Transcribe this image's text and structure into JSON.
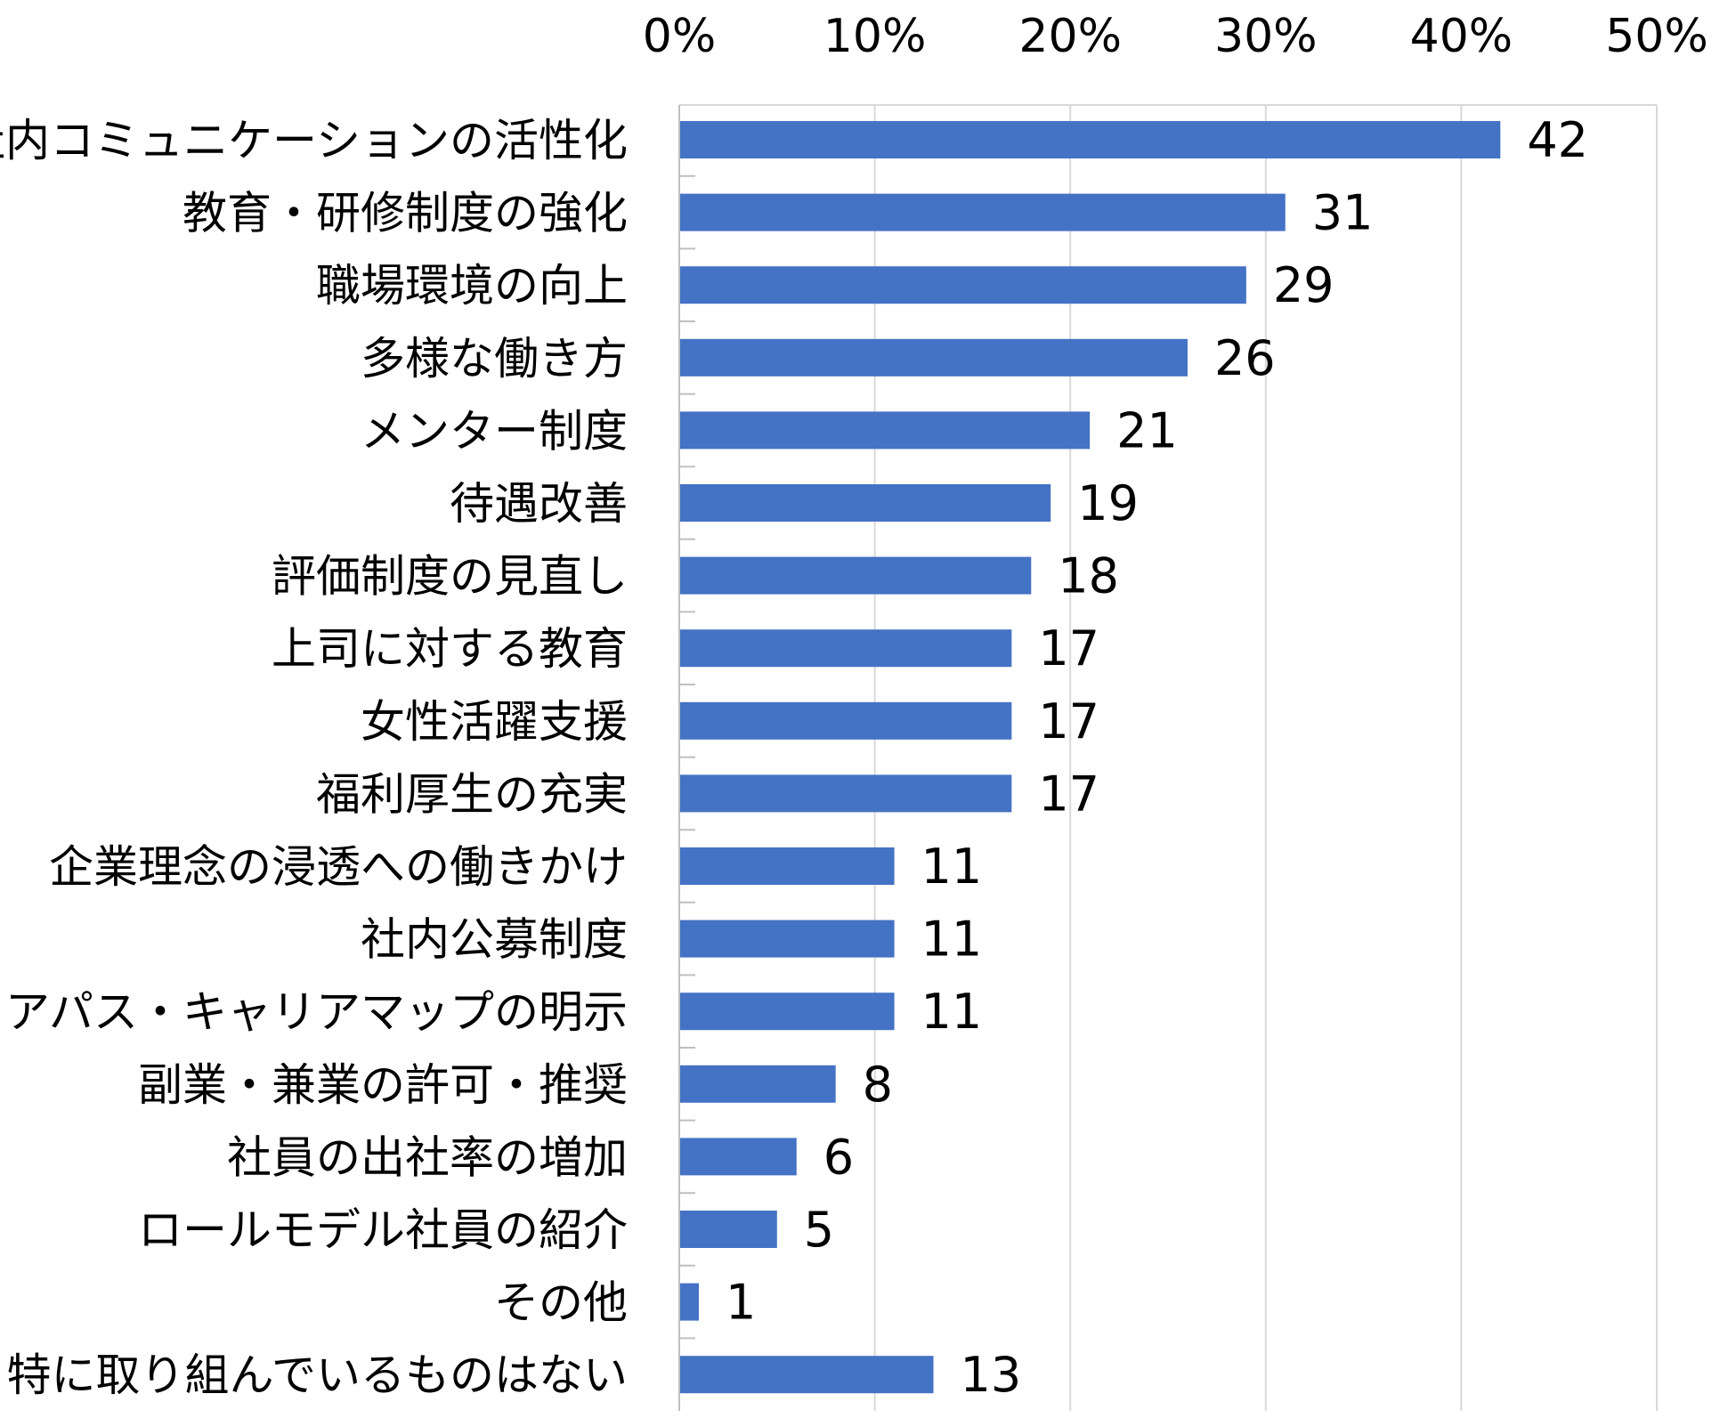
{
  "chart_data": {
    "type": "bar",
    "orientation": "horizontal",
    "title": "",
    "xlabel": "",
    "ylabel": "",
    "xlim": [
      0,
      50
    ],
    "x_ticks": [
      "0%",
      "10%",
      "20%",
      "30%",
      "40%",
      "50%"
    ],
    "x_axis_position": "top",
    "grid": true,
    "legend": "none",
    "bar_color": "#4472C4",
    "categories": [
      "社内コミュニケーションの活性化",
      "教育・研修制度の強化",
      "職場環境の向上",
      "多様な働き方",
      "メンター制度",
      "待遇改善",
      "評価制度の見直し",
      "上司に対する教育",
      "女性活躍支援",
      "福利厚生の充実",
      "企業理念の浸透への働きかけ",
      "社内公募制度",
      "キャリアパス・キャリアマップの明示",
      "副業・兼業の許可・推奨",
      "社員の出社率の増加",
      "ロールモデル社員の紹介",
      "その他",
      "特に取り組んでいるものはない"
    ],
    "values": [
      42,
      31,
      29,
      26,
      21,
      19,
      18,
      17,
      17,
      17,
      11,
      11,
      11,
      8,
      6,
      5,
      1,
      13
    ]
  }
}
